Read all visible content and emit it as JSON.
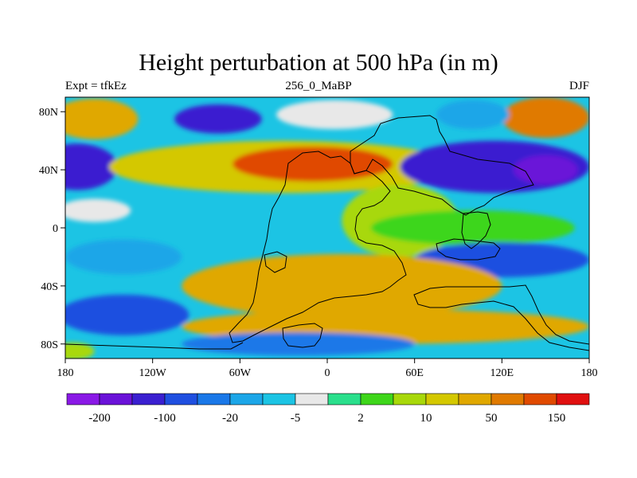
{
  "title": "Height perturbation at 500 hPa (in m)",
  "subtitle_left": "Expt = tfkEz",
  "subtitle_center": "256_0_MaBP",
  "subtitle_right": "DJF",
  "axes": {
    "x_ticks": [
      {
        "label": "180",
        "lon": -180
      },
      {
        "label": "120W",
        "lon": -120
      },
      {
        "label": "60W",
        "lon": -60
      },
      {
        "label": "0",
        "lon": 0
      },
      {
        "label": "60E",
        "lon": 60
      },
      {
        "label": "120E",
        "lon": 120
      },
      {
        "label": "180",
        "lon": 180
      }
    ],
    "y_ticks": [
      {
        "label": "80N",
        "lat": 80
      },
      {
        "label": "40N",
        "lat": 40
      },
      {
        "label": "0",
        "lat": 0
      },
      {
        "label": "40S",
        "lat": -40
      },
      {
        "label": "80S",
        "lat": -80
      }
    ],
    "lon_range": [
      -180,
      180
    ],
    "lat_range": [
      -90,
      90
    ]
  },
  "colorbar": {
    "colors": [
      "#8a19e6",
      "#6a12d8",
      "#3a1fd0",
      "#1f4fe0",
      "#1a78e8",
      "#1ca6e8",
      "#1cc4e4",
      "#e8e8e8",
      "#2adf8c",
      "#3ed61a",
      "#a8d80a",
      "#d4c800",
      "#e0a800",
      "#e07a00",
      "#e04a00",
      "#e01010"
    ],
    "labels": [
      {
        "text": "-200",
        "boundary": 1
      },
      {
        "text": "-100",
        "boundary": 3
      },
      {
        "text": "-20",
        "boundary": 5
      },
      {
        "text": "-5",
        "boundary": 7
      },
      {
        "text": "2",
        "boundary": 9
      },
      {
        "text": "10",
        "boundary": 11
      },
      {
        "text": "50",
        "boundary": 13
      },
      {
        "text": "150",
        "boundary": 15
      }
    ]
  },
  "field": {
    "background_color": "#1cc4e4",
    "anomalies": [
      {
        "lon": -160,
        "lat": 75,
        "r_lon": 30,
        "r_lat": 14,
        "level": 12
      },
      {
        "lon": -75,
        "lat": 75,
        "r_lon": 30,
        "r_lat": 10,
        "level": 2
      },
      {
        "lon": 5,
        "lat": 78,
        "r_lon": 40,
        "r_lat": 10,
        "level": 7
      },
      {
        "lon": 150,
        "lat": 76,
        "r_lon": 30,
        "r_lat": 14,
        "level": 13
      },
      {
        "lon": 100,
        "lat": 78,
        "r_lon": 25,
        "r_lat": 10,
        "level": 5
      },
      {
        "lon": -172,
        "lat": 42,
        "r_lon": 28,
        "r_lat": 16,
        "level": 2
      },
      {
        "lon": -30,
        "lat": 42,
        "r_lon": 120,
        "r_lat": 18,
        "level": 11
      },
      {
        "lon": -10,
        "lat": 44,
        "r_lon": 55,
        "r_lat": 12,
        "level": 14
      },
      {
        "lon": 115,
        "lat": 42,
        "r_lon": 65,
        "r_lat": 18,
        "level": 2
      },
      {
        "lon": 150,
        "lat": 40,
        "r_lon": 22,
        "r_lat": 10,
        "level": 1
      },
      {
        "lon": -160,
        "lat": 12,
        "r_lon": 25,
        "r_lat": 8,
        "level": 7
      },
      {
        "lon": 50,
        "lat": 5,
        "r_lon": 40,
        "r_lat": 25,
        "level": 10
      },
      {
        "lon": 100,
        "lat": 0,
        "r_lon": 70,
        "r_lat": 12,
        "level": 9
      },
      {
        "lon": 120,
        "lat": -22,
        "r_lon": 60,
        "r_lat": 12,
        "level": 3
      },
      {
        "lon": -140,
        "lat": -20,
        "r_lon": 40,
        "r_lat": 12,
        "level": 5
      },
      {
        "lon": 10,
        "lat": -40,
        "r_lon": 110,
        "r_lat": 22,
        "level": 12
      },
      {
        "lon": 40,
        "lat": -68,
        "r_lon": 140,
        "r_lat": 12,
        "level": 12
      },
      {
        "lon": -140,
        "lat": -60,
        "r_lon": 45,
        "r_lat": 14,
        "level": 3
      },
      {
        "lon": -20,
        "lat": -80,
        "r_lon": 80,
        "r_lat": 8,
        "level": 4
      },
      {
        "lon": -175,
        "lat": -85,
        "r_lon": 15,
        "r_lat": 6,
        "level": 10
      }
    ]
  }
}
